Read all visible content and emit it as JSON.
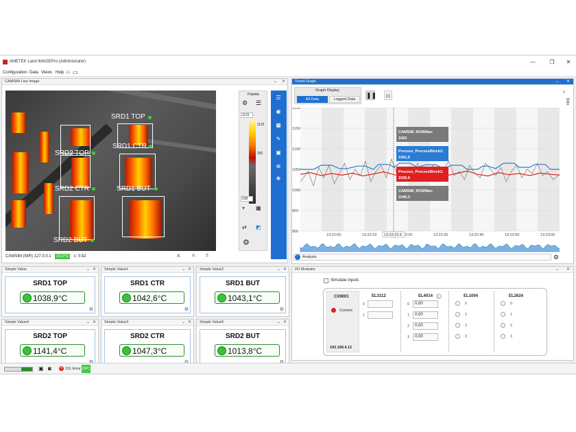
{
  "window": {
    "title": "AMETEK Land IMAGEPro (Administrator)",
    "minimize": "—",
    "restore": "❐",
    "close": "✕"
  },
  "menu": [
    "Configuration",
    "Data",
    "Views",
    "Help"
  ],
  "live_image": {
    "title": "CAMSIM Live Image",
    "camera_info": "CAMSIM (NIR) 127.0.0.1",
    "temp_badge": "33,0°C",
    "emissivity": "ε: 0.82",
    "coord_labels": [
      "X:",
      "Y:",
      "T:"
    ],
    "roi_labels": [
      "SRD1 TOP",
      "SRD2 TOP",
      "SRD1 CTR",
      "SRD2 CTR",
      "SRD1 BUT",
      "SRD2 BUT"
    ]
  },
  "palette": {
    "title": "Palette",
    "top_value": "1115",
    "max_label": "1115",
    "mid_label": "260",
    "bottom_value": "538"
  },
  "simple_values": [
    {
      "title": "Simple Value",
      "name": "SRD1 TOP",
      "value": "1038,9°C"
    },
    {
      "title": "Simple Value1",
      "name": "SRD1 CTR",
      "value": "1042,6°C"
    },
    {
      "title": "Simple Value2",
      "name": "SRD1 BUT",
      "value": "1043,1°C"
    },
    {
      "title": "Simple Value4",
      "name": "SRD2 TOP",
      "value": "1141,4°C"
    },
    {
      "title": "Simple Value3",
      "name": "SRD2 CTR",
      "value": "1047,3°C"
    },
    {
      "title": "Simple Value5",
      "name": "SRD2 BUT",
      "value": "1013,8°C"
    }
  ],
  "trend": {
    "title": "Trend Graph",
    "graph_display": "Graph Display",
    "btn_all": "All Data",
    "btn_logged": "Logged Data",
    "side_label": "Data",
    "analysis_label": "Analysis",
    "cursor_time": "13:22:22.6",
    "colors": {
      "blue": "#2a7bd2",
      "red": "#e02020",
      "gray": "#888888"
    },
    "tooltips": [
      {
        "label": "CAMSIM_ROI6Max:",
        "value": "1063",
        "color": "#7a7a7a"
      },
      {
        "label": "Process_ProcessBlock2:",
        "value": "1061,6",
        "color": "#2a7bd2"
      },
      {
        "label": "Process_ProcessBlock1:",
        "value": "1036,9",
        "color": "#e02020"
      },
      {
        "label": "CAMSIM_ROI2Max:",
        "value": "1040,3",
        "color": "#7a7a7a"
      }
    ]
  },
  "chart_data": {
    "type": "line",
    "y_ticks": [
      "1200",
      "1150",
      "1100",
      "1050",
      "1000",
      "950",
      "900"
    ],
    "x_ticks": [
      "13:22:00",
      "13:22:10",
      "13:22:20",
      "13:22:30",
      "13:22:40",
      "13:22:50",
      "13:23:00"
    ],
    "ylim": [
      900,
      1200
    ],
    "xlim": [
      "13:21:57",
      "13:23:02"
    ],
    "grid": true,
    "series": [
      {
        "name": "Process_ProcessBlock2",
        "color": "#2a7bd2",
        "x": [
          0,
          5,
          8,
          12,
          15,
          18,
          22,
          25,
          28,
          30,
          34,
          36,
          38,
          42,
          45,
          48,
          52,
          55,
          58,
          62,
          64,
          68,
          70,
          72,
          75,
          78,
          82,
          84,
          88,
          90,
          94,
          96,
          100
        ],
        "y": [
          1050,
          1050,
          1060,
          1060,
          1052,
          1052,
          1058,
          1058,
          1050,
          1062,
          1062,
          1055,
          1065,
          1065,
          1055,
          1061,
          1061,
          1052,
          1060,
          1060,
          1050,
          1050,
          1058,
          1058,
          1052,
          1065,
          1065,
          1055,
          1055,
          1062,
          1062,
          1050,
          1050
        ]
      },
      {
        "name": "Process_ProcessBlock1",
        "color": "#e02020",
        "x": [
          0,
          4,
          8,
          12,
          16,
          20,
          24,
          28,
          32,
          36,
          40,
          44,
          48,
          52,
          56,
          60,
          64,
          68,
          72,
          76,
          80,
          84,
          88,
          92,
          96,
          100
        ],
        "y": [
          1038,
          1042,
          1035,
          1040,
          1036,
          1041,
          1034,
          1039,
          1044,
          1037,
          1033,
          1041,
          1036,
          1043,
          1035,
          1040,
          1046,
          1038,
          1034,
          1042,
          1037,
          1040,
          1035,
          1041,
          1038,
          1036
        ]
      },
      {
        "name": "CAMSIM_ROI6Max",
        "color": "#888888",
        "x": [
          0,
          3,
          5,
          7,
          9,
          11,
          13,
          15,
          17,
          19,
          21,
          23,
          25,
          27,
          29,
          31,
          33,
          35,
          37,
          39,
          41,
          43,
          45,
          47,
          49,
          51,
          53,
          55,
          57,
          59,
          61,
          63,
          65,
          67,
          69,
          71,
          73,
          75,
          77,
          79,
          81,
          83,
          85,
          87,
          89,
          91,
          93,
          95,
          97,
          100
        ],
        "y": [
          1020,
          1045,
          1010,
          1055,
          1030,
          1060,
          1015,
          1040,
          1065,
          1025,
          1050,
          1035,
          1070,
          1020,
          1045,
          1060,
          1030,
          1075,
          1040,
          1025,
          1055,
          1035,
          1065,
          1030,
          1045,
          1060,
          1020,
          1050,
          1070,
          1035,
          1045,
          1025,
          1060,
          1040,
          1030,
          1065,
          1050,
          1035,
          1055,
          1020,
          1045,
          1060,
          1030,
          1050,
          1040,
          1065,
          1035,
          1045,
          1025,
          1040
        ]
      }
    ]
  },
  "io": {
    "title": "I/O Modules",
    "simulate_label": "Simulate Inputs",
    "cx_head": "CX9001",
    "comms_label": "Comms",
    "ip": "192.168.4.12",
    "el3112": {
      "head": "EL3112",
      "rows": [
        "0",
        "1"
      ]
    },
    "el4014": {
      "head": "EL4014",
      "rows": [
        "0",
        "1",
        "2",
        "3"
      ],
      "values": [
        "0,00",
        "0,00",
        "0,00",
        "0,00"
      ]
    },
    "el1004": {
      "head": "EL1004",
      "rows": [
        "0",
        "1",
        "2",
        "3"
      ]
    },
    "el2624": {
      "head": "EL2624",
      "rows": [
        "0",
        "1",
        "2",
        "3"
      ]
    }
  },
  "status": {
    "errors": "151 Error",
    "opc": "OPC"
  }
}
